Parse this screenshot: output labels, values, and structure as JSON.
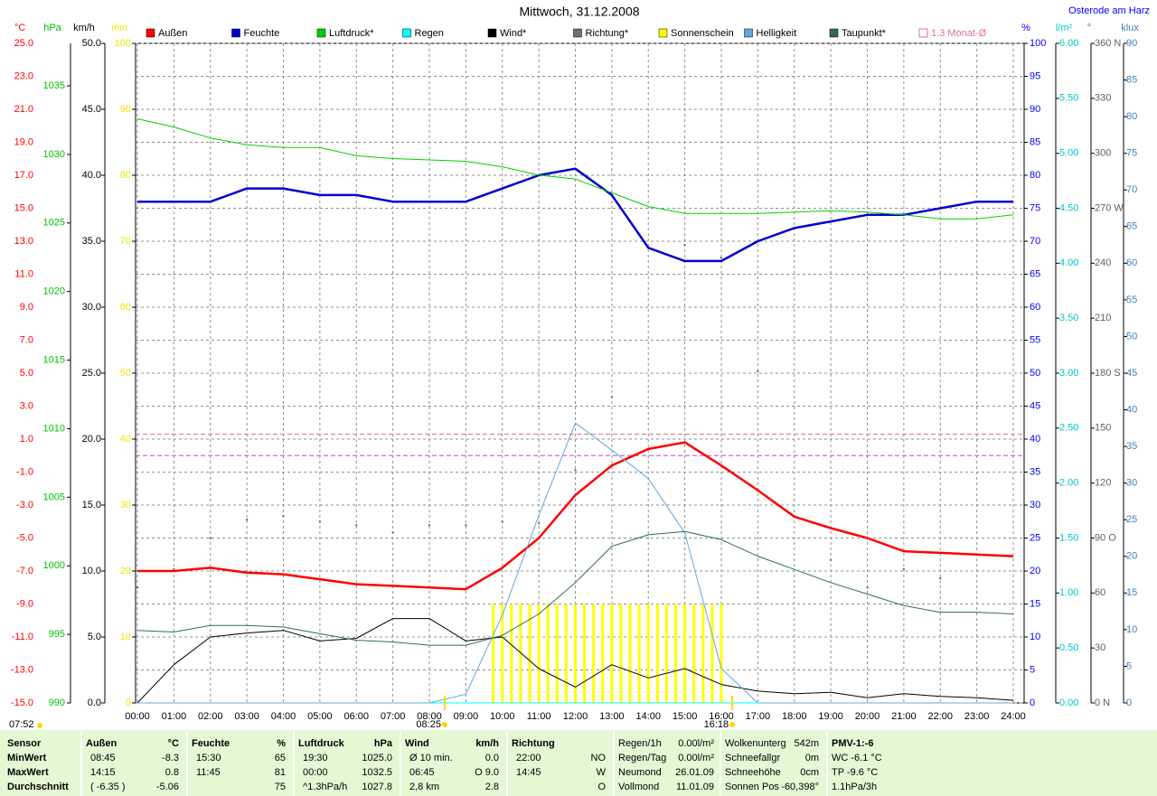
{
  "chart_data": {
    "type": "line",
    "title": "Mittwoch, 31.12.2008",
    "location": "Osterode am Harz",
    "x": [
      0,
      1,
      2,
      3,
      4,
      5,
      6,
      7,
      8,
      9,
      10,
      11,
      12,
      13,
      14,
      15,
      16,
      17,
      18,
      19,
      20,
      21,
      22,
      23,
      24
    ],
    "xlim": [
      0,
      24
    ],
    "xticks": [
      {
        "value": 0,
        "label": "00:00"
      },
      {
        "value": 1,
        "label": "01:00"
      },
      {
        "value": 2,
        "label": "02:00"
      },
      {
        "value": 3,
        "label": "03:00"
      },
      {
        "value": 4,
        "label": "04:00"
      },
      {
        "value": 5,
        "label": "05:00"
      },
      {
        "value": 6,
        "label": "06:00"
      },
      {
        "value": 7,
        "label": "07:00"
      },
      {
        "value": 8,
        "label": "08:00"
      },
      {
        "value": 9,
        "label": "09:00"
      },
      {
        "value": 10,
        "label": "10:00"
      },
      {
        "value": 11,
        "label": "11:00"
      },
      {
        "value": 12,
        "label": "12:00"
      },
      {
        "value": 13,
        "label": "13:00"
      },
      {
        "value": 14,
        "label": "14:00"
      },
      {
        "value": 15,
        "label": "15:00"
      },
      {
        "value": 16,
        "label": "16:00"
      },
      {
        "value": 17,
        "label": "17:00"
      },
      {
        "value": 18,
        "label": "18:00"
      },
      {
        "value": 19,
        "label": "19:00"
      },
      {
        "value": 20,
        "label": "20:00"
      },
      {
        "value": 21,
        "label": "21:00"
      },
      {
        "value": 22,
        "label": "22:00"
      },
      {
        "value": 23,
        "label": "23:00"
      },
      {
        "value": 24,
        "label": "24:00"
      }
    ],
    "grid": true,
    "axes": [
      {
        "unit": "°C",
        "color": "#ff0000",
        "lim": [
          -15,
          25
        ],
        "grid": true,
        "ticks": [
          {
            "value": 25,
            "label": "25.0"
          },
          {
            "value": 23,
            "label": "23.0"
          },
          {
            "value": 21,
            "label": "21.0"
          },
          {
            "value": 19,
            "label": "19.0"
          },
          {
            "value": 17,
            "label": "17.0"
          },
          {
            "value": 15,
            "label": "15.0"
          },
          {
            "value": 13,
            "label": "13.0"
          },
          {
            "value": 11,
            "label": "11.0"
          },
          {
            "value": 9,
            "label": "9.0"
          },
          {
            "value": 7,
            "label": "7.0"
          },
          {
            "value": 5,
            "label": "5.0"
          },
          {
            "value": 3,
            "label": "3.0"
          },
          {
            "value": 1,
            "label": "1.0"
          },
          {
            "value": -1,
            "label": "-1.0"
          },
          {
            "value": -3,
            "label": "-3.0"
          },
          {
            "value": -5,
            "label": "-5.0"
          },
          {
            "value": -7,
            "label": "-7.0"
          },
          {
            "value": -9,
            "label": "-9.0"
          },
          {
            "value": -11,
            "label": "-11.0"
          },
          {
            "value": -13,
            "label": "-13.0"
          },
          {
            "value": -15,
            "label": "-15.0"
          }
        ]
      },
      {
        "unit": "hPa",
        "color": "#00c000",
        "lim": [
          990,
          1038.1
        ],
        "ticks": [
          990,
          995,
          1000,
          1005,
          1010,
          1015,
          1020,
          1025,
          1030,
          1035
        ]
      },
      {
        "unit": "km/h",
        "color": "#000000",
        "lim": [
          0,
          50
        ],
        "ticks": [
          {
            "value": 0,
            "label": "0.0"
          },
          {
            "value": 5,
            "label": "5.0"
          },
          {
            "value": 10,
            "label": "10.0"
          },
          {
            "value": 15,
            "label": "15.0"
          },
          {
            "value": 20,
            "label": "20.0"
          },
          {
            "value": 25,
            "label": "25.0"
          },
          {
            "value": 30,
            "label": "30.0"
          },
          {
            "value": 35,
            "label": "35.0"
          },
          {
            "value": 40,
            "label": "40.0"
          },
          {
            "value": 45,
            "label": "45.0"
          },
          {
            "value": 50,
            "label": "50.0"
          }
        ]
      },
      {
        "unit": "min",
        "color": "#e8e800",
        "lim": [
          0,
          100
        ],
        "ticks": [
          0,
          10,
          20,
          30,
          40,
          50,
          60,
          70,
          80,
          90,
          100
        ]
      },
      {
        "unit": "%",
        "color": "#0000ff",
        "lim": [
          0,
          100
        ],
        "ticks": [
          0,
          5,
          10,
          15,
          20,
          25,
          30,
          35,
          40,
          45,
          50,
          55,
          60,
          65,
          70,
          75,
          80,
          85,
          90,
          95,
          100
        ]
      },
      {
        "unit": "l/m²",
        "color": "#00c8c8",
        "lim": [
          0,
          6
        ],
        "ticks": [
          {
            "value": 0,
            "label": "0.00"
          },
          {
            "value": 0.5,
            "label": "0.50"
          },
          {
            "value": 1,
            "label": "1.00"
          },
          {
            "value": 1.5,
            "label": "1.50"
          },
          {
            "value": 2,
            "label": "2.00"
          },
          {
            "value": 2.5,
            "label": "2.50"
          },
          {
            "value": 3,
            "label": "3.00"
          },
          {
            "value": 3.5,
            "label": "3.50"
          },
          {
            "value": 4,
            "label": "4.00"
          },
          {
            "value": 4.5,
            "label": "4.50"
          },
          {
            "value": 5,
            "label": "5.00"
          },
          {
            "value": 5.5,
            "label": "5.50"
          },
          {
            "value": 6,
            "label": "6.00"
          }
        ]
      },
      {
        "unit": "°",
        "color": "#606060",
        "lim": [
          0,
          360
        ],
        "ticks": [
          {
            "value": 0,
            "label": "0 N"
          },
          30,
          60,
          {
            "value": 90,
            "label": "90 O"
          },
          120,
          150,
          {
            "value": 180,
            "label": "180 S"
          },
          210,
          240,
          {
            "value": 270,
            "label": "270 W"
          },
          300,
          330,
          {
            "value": 360,
            "label": "360 N"
          }
        ]
      },
      {
        "unit": "klux",
        "color": "#4080c0",
        "lim": [
          0,
          90
        ],
        "ticks": [
          0,
          5,
          10,
          15,
          20,
          25,
          30,
          35,
          40,
          45,
          50,
          55,
          60,
          65,
          70,
          75,
          80,
          85,
          90
        ]
      }
    ],
    "series": [
      {
        "name": "Außen",
        "color": "#ff0000",
        "axis": 0,
        "width": 2.5,
        "values": [
          -7.0,
          -7.0,
          -6.8,
          -7.1,
          -7.2,
          -7.5,
          -7.8,
          -7.9,
          -8.0,
          -8.1,
          -6.8,
          -5.0,
          -2.4,
          -0.6,
          0.4,
          0.8,
          -0.6,
          -2.1,
          -3.7,
          -4.4,
          -5.0,
          -5.8,
          -5.9,
          -6.0,
          -6.1
        ]
      },
      {
        "name": "Feuchte",
        "color": "#0000d0",
        "axis": 4,
        "width": 2.5,
        "values": [
          76,
          76,
          76,
          78,
          78,
          77,
          77,
          76,
          76,
          76,
          78,
          80,
          81,
          77,
          69,
          67,
          67,
          70,
          72,
          73,
          74,
          74,
          75,
          76,
          76
        ]
      },
      {
        "name": "Luftdruck*",
        "color": "#00d000",
        "axis": 1,
        "width": 1,
        "values": [
          1032.6,
          1032.0,
          1031.2,
          1030.7,
          1030.5,
          1030.5,
          1029.9,
          1029.7,
          1029.6,
          1029.5,
          1029.1,
          1028.5,
          1028.2,
          1027.2,
          1026.2,
          1025.7,
          1025.7,
          1025.7,
          1025.8,
          1025.9,
          1025.8,
          1025.6,
          1025.3,
          1025.3,
          1025.6
        ]
      },
      {
        "name": "Regen",
        "color": "#00ffff",
        "axis": 5,
        "width": 1,
        "values": [
          0,
          0,
          0,
          0,
          0,
          0,
          0,
          0,
          0,
          0,
          0,
          0,
          0,
          0,
          0,
          0,
          0,
          0,
          0,
          0,
          0,
          0,
          0,
          0,
          0
        ]
      },
      {
        "name": "Wind*",
        "color": "#000000",
        "axis": 2,
        "width": 1,
        "values": [
          0,
          2.9,
          5.0,
          5.3,
          5.5,
          4.7,
          4.9,
          6.4,
          6.4,
          4.7,
          5.0,
          2.6,
          1.2,
          2.9,
          1.9,
          2.6,
          1.4,
          0.9,
          0.7,
          0.8,
          0.4,
          0.7,
          0.5,
          0.4,
          0.2
        ]
      },
      {
        "name": "Richtung*",
        "color": "#707070",
        "axis": 6,
        "marker": "dots",
        "values": [
          63,
          73,
          90,
          100,
          102,
          99,
          97,
          93,
          97,
          97,
          99,
          98,
          127,
          167,
          null,
          250,
          243,
          181,
          null,
          78,
          63,
          73,
          68,
          null,
          null
        ]
      },
      {
        "name": "Sonnenschein",
        "color": "#ffff00",
        "axis": 3,
        "marker": "bars",
        "x": [
          9.75,
          10,
          10.25,
          10.5,
          10.75,
          11,
          11.25,
          11.5,
          11.75,
          12,
          12.25,
          12.5,
          12.75,
          13,
          13.25,
          13.5,
          13.75,
          14,
          14.25,
          14.5,
          14.75,
          15,
          15.25,
          15.5,
          15.75,
          16
        ],
        "values": [
          15,
          15,
          15,
          15,
          15,
          15,
          15,
          15,
          15,
          15,
          15,
          15,
          15,
          15,
          15,
          15,
          15,
          15,
          15,
          15,
          15,
          15,
          15,
          15,
          15,
          15
        ]
      },
      {
        "name": "Helligkeit",
        "color": "#60a8e0",
        "axis": 7,
        "width": 1,
        "values": [
          0,
          0,
          0,
          0,
          0,
          0,
          0,
          0,
          0,
          1.2,
          12,
          25.6,
          38.2,
          34.5,
          30.6,
          23.2,
          4.7,
          0,
          0,
          0,
          0,
          0,
          0,
          0,
          0
        ]
      },
      {
        "name": "Taupunkt*",
        "color": "#306868",
        "axis": 0,
        "width": 1,
        "values": [
          -10.6,
          -10.7,
          -10.3,
          -10.3,
          -10.4,
          -10.8,
          -11.2,
          -11.3,
          -11.5,
          -11.5,
          -10.9,
          -9.6,
          -7.7,
          -5.5,
          -4.8,
          -4.6,
          -5.1,
          -6.1,
          -6.9,
          -7.7,
          -8.4,
          -9.1,
          -9.5,
          -9.5,
          -9.6
        ]
      }
    ],
    "reference_lines": [
      {
        "label": "1.3 Monat-Ø",
        "value": 1.3,
        "color": "#e07090",
        "axis": 0
      },
      {
        "value": 0,
        "color": "#d040d0",
        "axis": 0
      }
    ],
    "sun_markers": [
      {
        "label": "07:52"
      },
      {
        "label": "08:25",
        "x": 8.42
      },
      {
        "label": "16:18",
        "x": 16.3
      }
    ]
  },
  "summary": {
    "groups": [
      {
        "rows": [
          [
            "Sensor",
            null
          ],
          [
            "MinWert",
            null
          ],
          [
            "MaxWert",
            null
          ],
          [
            "Durchschnitt",
            null
          ]
        ]
      },
      {
        "rows": [
          [
            "Außen",
            "°C"
          ],
          [
            "08:45",
            "-8.3"
          ],
          [
            "14:15",
            "0.8"
          ],
          [
            "( -6.35 )",
            "-5.06"
          ]
        ]
      },
      {
        "rows": [
          [
            "Feuchte",
            "%"
          ],
          [
            "15:30",
            "65"
          ],
          [
            "11:45",
            "81"
          ],
          [
            null,
            "75"
          ]
        ]
      },
      {
        "rows": [
          [
            "Luftdruck",
            "hPa"
          ],
          [
            "19:30",
            "1025.0"
          ],
          [
            "00:00",
            "1032.5"
          ],
          [
            "^1.3hPa/h",
            "1027.8"
          ]
        ]
      },
      {
        "rows": [
          [
            "Wind",
            "km/h"
          ],
          [
            "Ø 10 min.",
            "0.0"
          ],
          [
            "06:45",
            "O 9.0"
          ],
          [
            "2,8 km",
            "2.8"
          ]
        ]
      },
      {
        "rows": [
          [
            "Richtung",
            null
          ],
          [
            "22:00",
            "NO"
          ],
          [
            "14:45",
            "W"
          ],
          [
            null,
            "O"
          ]
        ]
      },
      {
        "rows": [
          [
            "Regen/1h",
            "0.00l/m²"
          ],
          [
            "Regen/Tag",
            "0.00l/m²"
          ],
          [
            "Neumond",
            "26.01.09"
          ],
          [
            "Vollmond",
            "11.01.09"
          ]
        ]
      },
      {
        "rows": [
          [
            "Wolkenunterg",
            "542m"
          ],
          [
            "Schneefallgr",
            "0m"
          ],
          [
            "Schneehöhe",
            "0cm"
          ],
          [
            "Sonnen Pos",
            "-60,398°"
          ]
        ]
      },
      {
        "rows": [
          [
            "PMV-1:-6",
            null
          ],
          [
            "WC -6.1 °C",
            null
          ],
          [
            "TP -9.6 °C",
            null
          ],
          [
            "1.1hPa/3h",
            null
          ]
        ]
      }
    ]
  }
}
